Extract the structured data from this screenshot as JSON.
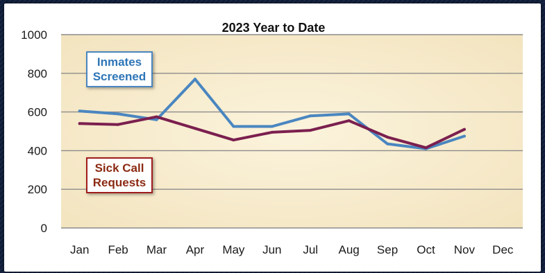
{
  "chart_data": {
    "type": "line",
    "title": "2023 Year to Date",
    "categories": [
      "Jan",
      "Feb",
      "Mar",
      "Apr",
      "May",
      "Jun",
      "Jul",
      "Aug",
      "Sep",
      "Oct",
      "Nov",
      "Dec"
    ],
    "ylim": [
      0,
      1000
    ],
    "yticks": [
      "0",
      "200",
      "400",
      "600",
      "800",
      "1000"
    ],
    "grid": true,
    "series": [
      {
        "name": "Inmates Screened",
        "color": "#4a86c0",
        "values": [
          605,
          590,
          560,
          770,
          525,
          525,
          580,
          590,
          435,
          410,
          475,
          null
        ]
      },
      {
        "name": "Sick Call Requests",
        "color": "#7b1f4f",
        "values": [
          540,
          535,
          575,
          515,
          455,
          495,
          505,
          555,
          470,
          415,
          510,
          null
        ]
      }
    ],
    "callouts": [
      {
        "line1": "Inmates",
        "line2": "Screened",
        "color": "#2e75b6"
      },
      {
        "line1": "Sick Call",
        "line2": "Requests",
        "color": "#8b2a12"
      }
    ]
  }
}
